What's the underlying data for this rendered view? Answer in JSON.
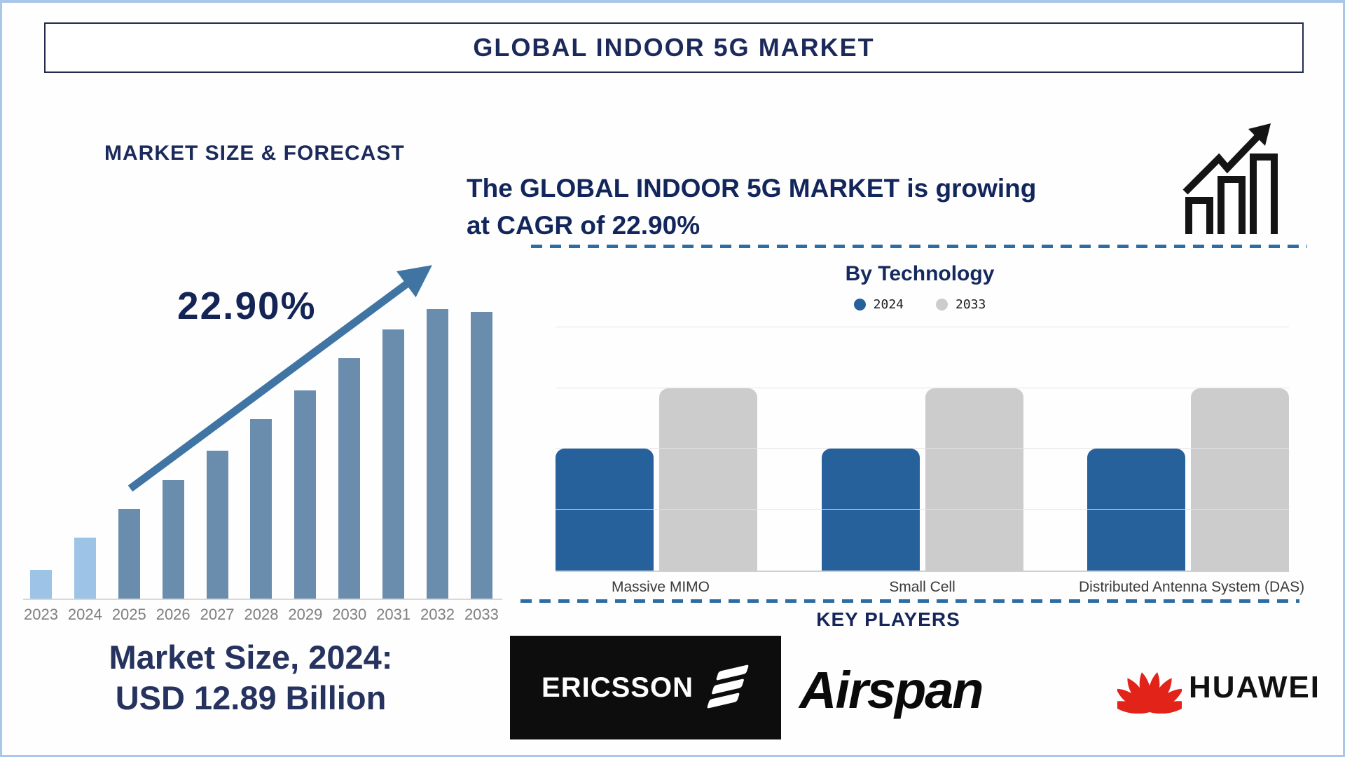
{
  "header": {
    "title": "GLOBAL INDOOR 5G MARKET"
  },
  "right_panel": {
    "growth_line1": "The GLOBAL INDOOR 5G MARKET is growing",
    "growth_line2": "at CAGR of 22.90%"
  },
  "key_players": {
    "heading": "KEY PLAYERS",
    "players": [
      {
        "name": "ERICSSON",
        "logo_style": "white wordmark with three slanted bars on black box"
      },
      {
        "name": "Airspan",
        "logo_style": "black italic wordmark"
      },
      {
        "name": "HUAWEI",
        "logo_style": "red petal flower beside black wordmark"
      }
    ]
  },
  "icons": {
    "growth_icon": "growth-chart-icon",
    "ericsson_bars": "ericsson-bars-icon",
    "huawei_flower": "huawei-flower-icon"
  },
  "colors": {
    "frame_border": "#a9c7e8",
    "navy_text": "#1b2a5a",
    "trend_arrow": "#3f74a3",
    "dashed_divider": "#2e6da4",
    "ericsson_black": "#0d0d0d",
    "huawei_red": "#e2231a"
  },
  "chart_data": [
    {
      "id": "market-size-forecast",
      "type": "bar",
      "title": "MARKET SIZE & FORECAST",
      "cagr_label": "22.90%",
      "caption_lines": [
        "Market Size, 2024:",
        "USD 12.89 Billion"
      ],
      "categories": [
        "2023",
        "2024",
        "2025",
        "2026",
        "2027",
        "2028",
        "2029",
        "2030",
        "2031",
        "2032",
        "2033"
      ],
      "values_relative": [
        0.1,
        0.21,
        0.31,
        0.41,
        0.51,
        0.62,
        0.72,
        0.83,
        0.93,
        1.0,
        0.99
      ],
      "value_axis_note": "no value axis shown; bar heights are relative, 2024 = USD 12.89 Billion",
      "highlight_categories": [
        "2023",
        "2024"
      ],
      "highlight_color": "#9dc3e6",
      "bar_color": "#6a8cad",
      "annotations": [
        "upward trend arrow",
        "CAGR 22.90%"
      ],
      "grid": false,
      "legend": false
    },
    {
      "id": "by-technology",
      "type": "bar",
      "title": "By Technology",
      "categories": [
        "Massive MIMO",
        "Small Cell",
        "Distributed Antenna System (DAS)"
      ],
      "series": [
        {
          "name": "2024",
          "color": "#26619c",
          "values": [
            2,
            2,
            2
          ]
        },
        {
          "name": "2033",
          "color": "#cccccc",
          "values": [
            3,
            3,
            3
          ]
        }
      ],
      "ylim": [
        0,
        4
      ],
      "value_axis_note": "unlabeled axis; values expressed in gridline units",
      "grid": true,
      "legend_position": "top center"
    }
  ]
}
